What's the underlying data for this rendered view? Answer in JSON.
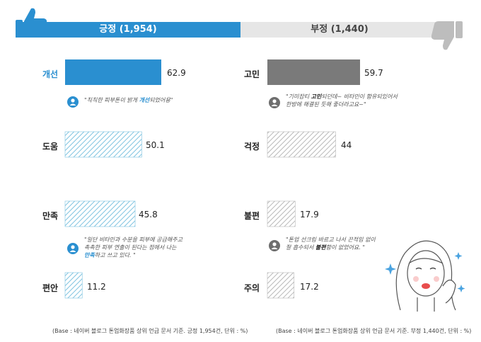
{
  "header": {
    "positive_label": "긍정 (1,954)",
    "negative_label": "부정 (1,440)"
  },
  "chart_data": [
    {
      "type": "bar",
      "series": [
        {
          "name": "긍정",
          "values": [
            62.9,
            50.1,
            45.8,
            11.2
          ]
        }
      ],
      "categories": [
        "개선",
        "도움",
        "만족",
        "편안"
      ],
      "highlight": "개선",
      "colors": {
        "highlight": "#2a8fd0",
        "hatch": "#7ec3e0"
      }
    },
    {
      "type": "bar",
      "series": [
        {
          "name": "부정",
          "values": [
            59.7,
            44,
            17.9,
            17.2
          ]
        }
      ],
      "categories": [
        "고민",
        "걱정",
        "불편",
        "주의"
      ],
      "highlight": "고민",
      "colors": {
        "highlight": "#7a7a7a",
        "hatch": "#b8b8b8"
      }
    }
  ],
  "value_labels": {
    "positive": [
      "62.9",
      "50.1",
      "45.8",
      "11.2"
    ],
    "negative": [
      "59.7",
      "44",
      "17.9",
      "17.2"
    ]
  },
  "quotes": {
    "pos1": {
      "pre": "\"칙칙한 피부톤이 밝게 ",
      "key": "개선",
      "post": "되었어용\""
    },
    "pos2": {
      "line1": "\"일단 비타민과 수분을 피부에 공급해주고",
      "line2": "촉촉한 피부 연출이 된다는 점에서 나는",
      "key": "만족",
      "post": "하고 쓰고 있다. \""
    },
    "neg1": {
      "pre": "\"기미잡티 ",
      "key": "고민",
      "post": "되던데~ 비타민이 함유되있어서",
      "line2": "한방에 해결된 듯해 좋더라고요~\""
    },
    "neg2": {
      "line1": "\"톤업 선크림 바르고 나서 끈적임 없이",
      "pre": "잘 흡수되서 ",
      "key": "불편",
      "post": "함이 없었어요. \""
    }
  },
  "footnotes": {
    "positive": "(Base : 네이버 블로그 톤업화장품 상위 언급 문서 기준. 긍정 1,954건, 단위 : %)",
    "negative": "(Base : 네이버 블로그 톤업화장품 상위 언급 문서 기준. 부정 1,440건, 단위 : %)"
  },
  "icons": [
    "thumbs-up-icon",
    "thumbs-down-icon",
    "person-icon",
    "woman-illustration"
  ]
}
